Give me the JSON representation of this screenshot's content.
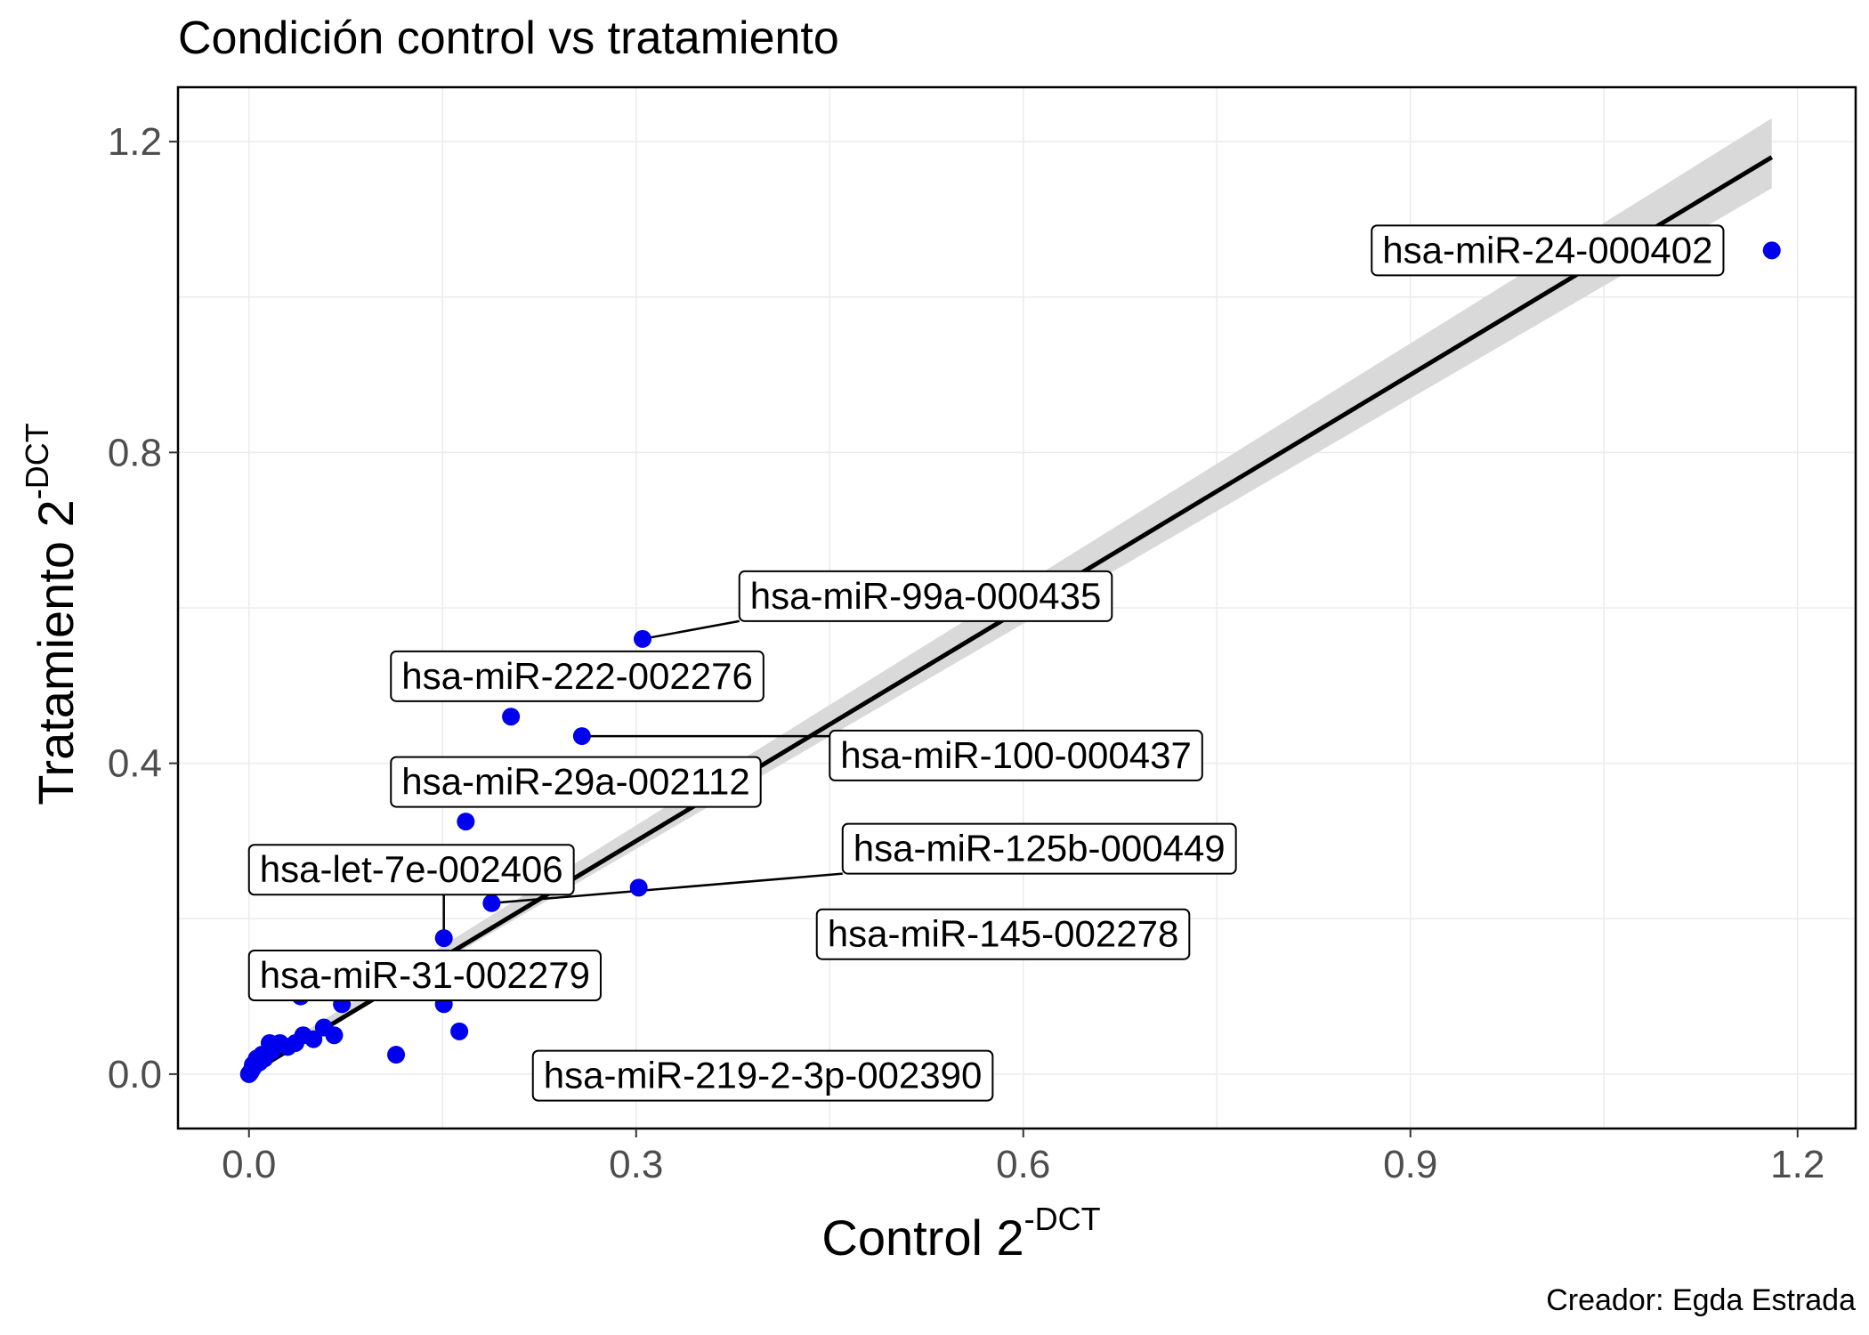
{
  "chart_data": {
    "type": "scatter",
    "title": "Condición control vs tratamiento",
    "xlabel": "Control 2",
    "xlabel_sup": "-DCT",
    "ylabel": "Tratamiento 2",
    "ylabel_sup": "-DCT",
    "caption": "Creador: Egda Estrada",
    "xlim": [
      -0.055,
      1.245
    ],
    "ylim": [
      -0.07,
      1.27
    ],
    "x_ticks": [
      0.0,
      0.3,
      0.6,
      0.9,
      1.2
    ],
    "y_ticks": [
      0.0,
      0.4,
      0.8,
      1.2
    ],
    "x_tick_labels": [
      "0.0",
      "0.3",
      "0.6",
      "0.9",
      "1.2"
    ],
    "y_tick_labels": [
      "0.0",
      "0.4",
      "0.8",
      "1.2"
    ],
    "grid": true,
    "point_color": "#0000ee",
    "fit_line": {
      "method": "linear",
      "x_range": [
        0.0,
        1.18
      ],
      "intercept": 0.0,
      "slope": 1.0,
      "ci_lower": [
        0.0,
        1.14
      ],
      "ci_upper": [
        0.01,
        1.23
      ],
      "line_color": "#000000",
      "band_color": "#d9d9d9"
    },
    "points": [
      {
        "x": 1.18,
        "y": 1.06
      },
      {
        "x": 0.305,
        "y": 0.56
      },
      {
        "x": 0.203,
        "y": 0.46
      },
      {
        "x": 0.258,
        "y": 0.435
      },
      {
        "x": 0.168,
        "y": 0.325
      },
      {
        "x": 0.302,
        "y": 0.24
      },
      {
        "x": 0.188,
        "y": 0.22
      },
      {
        "x": 0.151,
        "y": 0.175
      },
      {
        "x": 0.151,
        "y": 0.09
      },
      {
        "x": 0.163,
        "y": 0.055
      },
      {
        "x": 0.114,
        "y": 0.025
      },
      {
        "x": 0.072,
        "y": 0.09
      },
      {
        "x": 0.04,
        "y": 0.1
      },
      {
        "x": 0.066,
        "y": 0.05
      },
      {
        "x": 0.058,
        "y": 0.06
      },
      {
        "x": 0.05,
        "y": 0.045
      },
      {
        "x": 0.042,
        "y": 0.05
      },
      {
        "x": 0.036,
        "y": 0.04
      },
      {
        "x": 0.03,
        "y": 0.035
      },
      {
        "x": 0.024,
        "y": 0.04
      },
      {
        "x": 0.018,
        "y": 0.03
      },
      {
        "x": 0.016,
        "y": 0.04
      },
      {
        "x": 0.012,
        "y": 0.02
      },
      {
        "x": 0.01,
        "y": 0.025
      },
      {
        "x": 0.008,
        "y": 0.015
      },
      {
        "x": 0.006,
        "y": 0.02
      },
      {
        "x": 0.004,
        "y": 0.01
      },
      {
        "x": 0.003,
        "y": 0.012
      },
      {
        "x": 0.002,
        "y": 0.005
      },
      {
        "x": 0.001,
        "y": 0.002
      },
      {
        "x": 0.0,
        "y": 0.0
      }
    ],
    "annotations": [
      {
        "text": "hsa-miR-24-000402",
        "x": 1.18,
        "y": 1.06,
        "label_x": 0.87,
        "label_y": 1.06,
        "leader": false
      },
      {
        "text": "hsa-miR-99a-000435",
        "x": 0.305,
        "y": 0.56,
        "label_x": 0.38,
        "label_y": 0.615,
        "leader": true
      },
      {
        "text": "hsa-miR-222-002276",
        "x": 0.203,
        "y": 0.46,
        "label_x": 0.11,
        "label_y": 0.512,
        "leader": false
      },
      {
        "text": "hsa-miR-100-000437",
        "x": 0.258,
        "y": 0.435,
        "label_x": 0.45,
        "label_y": 0.41,
        "leader": true
      },
      {
        "text": "hsa-miR-29a-002112",
        "x": 0.168,
        "y": 0.325,
        "label_x": 0.11,
        "label_y": 0.376,
        "leader": false
      },
      {
        "text": "hsa-miR-125b-000449",
        "x": 0.188,
        "y": 0.22,
        "label_x": 0.46,
        "label_y": 0.29,
        "leader": true
      },
      {
        "text": "hsa-let-7e-002406",
        "x": 0.151,
        "y": 0.175,
        "label_x": 0.0,
        "label_y": 0.263,
        "leader": true
      },
      {
        "text": "hsa-miR-145-002278",
        "x": 0.302,
        "y": 0.24,
        "label_x": 0.44,
        "label_y": 0.18,
        "leader": false
      },
      {
        "text": "hsa-miR-31-002279",
        "x": 0.072,
        "y": 0.09,
        "label_x": 0.0,
        "label_y": 0.127,
        "leader": false
      },
      {
        "text": "hsa-miR-219-2-3p-002390",
        "x": 0.025,
        "y": 0.0,
        "label_x": 0.22,
        "label_y": -0.002,
        "leader": false
      }
    ]
  }
}
